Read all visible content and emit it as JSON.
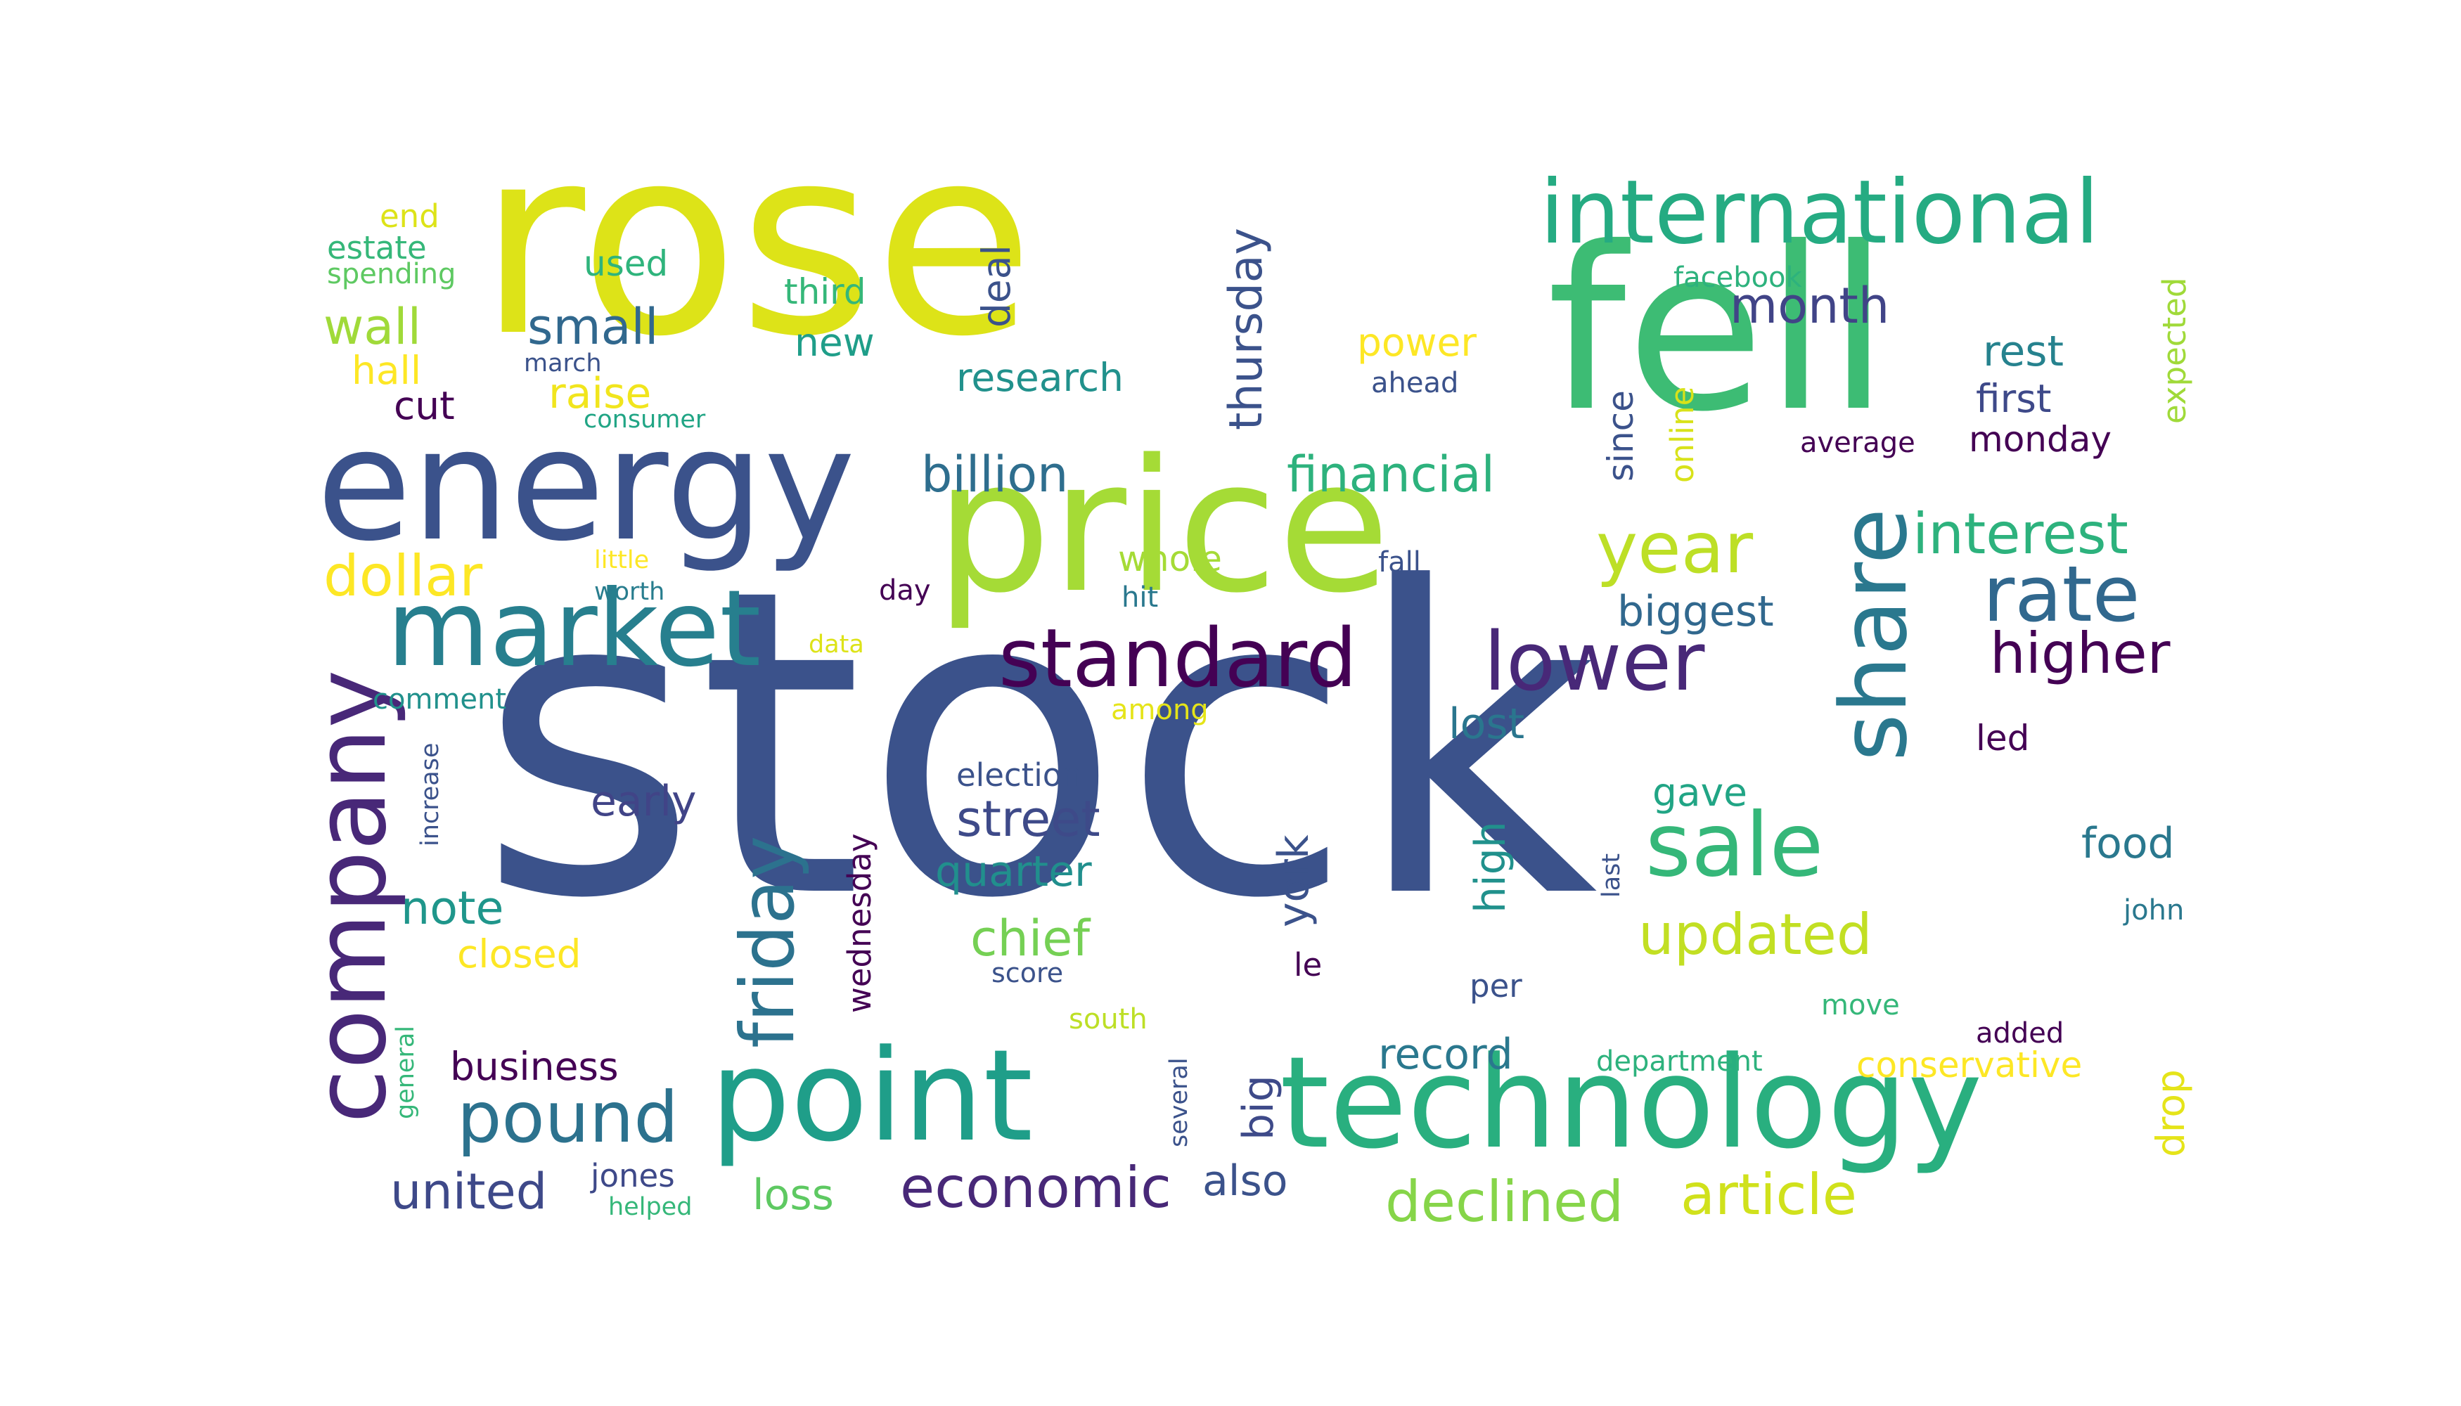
{
  "words": [
    {
      "text": "stock",
      "color": "#3b528b",
      "rotated": false
    },
    {
      "text": "rose",
      "color": "#dde318",
      "rotated": false
    },
    {
      "text": "fell",
      "color": "#3dbc74",
      "rotated": false
    },
    {
      "text": "price",
      "color": "#a5db36",
      "rotated": false
    },
    {
      "text": "energy",
      "color": "#3b528b",
      "rotated": false
    },
    {
      "text": "point",
      "color": "#1f9e89",
      "rotated": false
    },
    {
      "text": "technology",
      "color": "#29af7f",
      "rotated": false
    },
    {
      "text": "market",
      "color": "#277f8e",
      "rotated": false
    },
    {
      "text": "company",
      "color": "#482878",
      "rotated": true
    },
    {
      "text": "share",
      "color": "#2a788e",
      "rotated": true
    },
    {
      "text": "sale",
      "color": "#35b779",
      "rotated": false
    },
    {
      "text": "international",
      "color": "#25ab82",
      "rotated": false
    },
    {
      "text": "standard",
      "color": "#440154",
      "rotated": false
    },
    {
      "text": "lower",
      "color": "#482878",
      "rotated": false
    },
    {
      "text": "rate",
      "color": "#31688e",
      "rotated": false
    },
    {
      "text": "year",
      "color": "#bddf26",
      "rotated": false
    },
    {
      "text": "friday",
      "color": "#2c728e",
      "rotated": true
    },
    {
      "text": "pound",
      "color": "#2c728e",
      "rotated": false
    },
    {
      "text": "interest",
      "color": "#2db27d",
      "rotated": false
    },
    {
      "text": "higher",
      "color": "#440154",
      "rotated": false
    },
    {
      "text": "dollar",
      "color": "#fde725",
      "rotated": false
    },
    {
      "text": "updated",
      "color": "#c2df23",
      "rotated": false
    },
    {
      "text": "economic",
      "color": "#482878",
      "rotated": false
    },
    {
      "text": "article",
      "color": "#d0e11c",
      "rotated": false
    },
    {
      "text": "declined",
      "color": "#86d549",
      "rotated": false
    },
    {
      "text": "united",
      "color": "#3e4989",
      "rotated": false
    },
    {
      "text": "financial",
      "color": "#2db27d",
      "rotated": false
    },
    {
      "text": "billion",
      "color": "#2e6e8e",
      "rotated": false
    },
    {
      "text": "street",
      "color": "#3e4a89",
      "rotated": false
    },
    {
      "text": "month",
      "color": "#414487",
      "rotated": false
    },
    {
      "text": "small",
      "color": "#31688e",
      "rotated": false
    },
    {
      "text": "wall",
      "color": "#a0da39",
      "rotated": false
    },
    {
      "text": "thursday",
      "color": "#3b528b",
      "rotated": true
    },
    {
      "text": "chief",
      "color": "#75d054",
      "rotated": false
    },
    {
      "text": "note",
      "color": "#1f968b",
      "rotated": false
    },
    {
      "text": "quarter",
      "color": "#218f8d",
      "rotated": false
    },
    {
      "text": "biggest",
      "color": "#31688e",
      "rotated": false
    },
    {
      "text": "lost",
      "color": "#2a768e",
      "rotated": false
    },
    {
      "text": "record",
      "color": "#2a788e",
      "rotated": false
    },
    {
      "text": "raise",
      "color": "#f1e51d",
      "rotated": false
    },
    {
      "text": "power",
      "color": "#fde725",
      "rotated": false
    },
    {
      "text": "research",
      "color": "#21918c",
      "rotated": false
    },
    {
      "text": "new",
      "color": "#1f9e89",
      "rotated": false
    },
    {
      "text": "early",
      "color": "#414487",
      "rotated": false
    },
    {
      "text": "high",
      "color": "#21918c",
      "rotated": true
    },
    {
      "text": "york",
      "color": "#3b528b",
      "rotated": true
    },
    {
      "text": "deal",
      "color": "#3b528b",
      "rotated": true
    },
    {
      "text": "rest",
      "color": "#26828e",
      "rotated": false
    },
    {
      "text": "first",
      "color": "#3e4989",
      "rotated": false
    },
    {
      "text": "monday",
      "color": "#440154",
      "rotated": false
    },
    {
      "text": "food",
      "color": "#2a788e",
      "rotated": false
    },
    {
      "text": "business",
      "color": "#440154",
      "rotated": false
    },
    {
      "text": "also",
      "color": "#3b528b",
      "rotated": false
    },
    {
      "text": "loss",
      "color": "#5ec962",
      "rotated": false
    },
    {
      "text": "drop",
      "color": "#e5e419",
      "rotated": true
    },
    {
      "text": "closed",
      "color": "#fde725",
      "rotated": false
    },
    {
      "text": "conservative",
      "color": "#fde725",
      "rotated": false
    },
    {
      "text": "big",
      "color": "#3e4a89",
      "rotated": true
    },
    {
      "text": "wednesday",
      "color": "#440154",
      "rotated": true
    },
    {
      "text": "gave",
      "color": "#21a585",
      "rotated": false
    },
    {
      "text": "since",
      "color": "#3b528b",
      "rotated": true
    },
    {
      "text": "online",
      "color": "#d8e219",
      "rotated": true
    },
    {
      "text": "expected",
      "color": "#a0da39",
      "rotated": true
    },
    {
      "text": "cut",
      "color": "#440154",
      "rotated": false
    },
    {
      "text": "third",
      "color": "#35b779",
      "rotated": false
    },
    {
      "text": "used",
      "color": "#2fb47c",
      "rotated": false
    },
    {
      "text": "hall",
      "color": "#fde725",
      "rotated": false
    },
    {
      "text": "end",
      "color": "#dde318",
      "rotated": false
    },
    {
      "text": "estate",
      "color": "#35b779",
      "rotated": false
    },
    {
      "text": "spending",
      "color": "#5ec962",
      "rotated": false
    },
    {
      "text": "march",
      "color": "#3b528b",
      "rotated": false
    },
    {
      "text": "consumer",
      "color": "#21a585",
      "rotated": false
    },
    {
      "text": "facebook",
      "color": "#2db27d",
      "rotated": false
    },
    {
      "text": "ahead",
      "color": "#3b528b",
      "rotated": false
    },
    {
      "text": "average",
      "color": "#440154",
      "rotated": false
    },
    {
      "text": "whole",
      "color": "#a5db36",
      "rotated": false
    },
    {
      "text": "hit",
      "color": "#2a788e",
      "rotated": false
    },
    {
      "text": "fall",
      "color": "#3b528b",
      "rotated": false
    },
    {
      "text": "little",
      "color": "#fde725",
      "rotated": false
    },
    {
      "text": "worth",
      "color": "#287d8e",
      "rotated": false
    },
    {
      "text": "day",
      "color": "#440154",
      "rotated": false
    },
    {
      "text": "data",
      "color": "#dde318",
      "rotated": false
    },
    {
      "text": "comment",
      "color": "#21918c",
      "rotated": false
    },
    {
      "text": "among",
      "color": "#e5e419",
      "rotated": false
    },
    {
      "text": "election",
      "color": "#3b528b",
      "rotated": false
    },
    {
      "text": "increase",
      "color": "#3b528b",
      "rotated": true
    },
    {
      "text": "le",
      "color": "#440154",
      "rotated": false
    },
    {
      "text": "per",
      "color": "#3b528b",
      "rotated": false
    },
    {
      "text": "led",
      "color": "#440154",
      "rotated": false
    },
    {
      "text": "last",
      "color": "#3b528b",
      "rotated": true
    },
    {
      "text": "john",
      "color": "#2a788e",
      "rotated": false
    },
    {
      "text": "score",
      "color": "#3b528b",
      "rotated": false
    },
    {
      "text": "south",
      "color": "#bddf26",
      "rotated": false
    },
    {
      "text": "move",
      "color": "#35b779",
      "rotated": false
    },
    {
      "text": "added",
      "color": "#440154",
      "rotated": false
    },
    {
      "text": "department",
      "color": "#2db27d",
      "rotated": false
    },
    {
      "text": "general",
      "color": "#35b779",
      "rotated": true
    },
    {
      "text": "several",
      "color": "#3b528b",
      "rotated": true
    },
    {
      "text": "jones",
      "color": "#3e4989",
      "rotated": false
    },
    {
      "text": "helped",
      "color": "#35b779",
      "rotated": false
    }
  ]
}
